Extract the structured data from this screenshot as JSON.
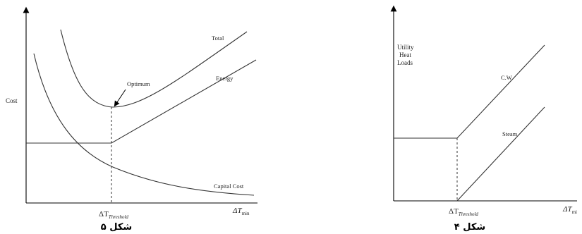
{
  "figures": [
    {
      "caption": "شکل ۵",
      "y_axis_label": "Cost",
      "x_axis_label": "ΔT",
      "x_axis_sub": "min",
      "threshold_label": "ΔT",
      "threshold_sub": "Threshold",
      "curves": {
        "total": "Total",
        "energy": "Energy",
        "capital": "Capital Cost",
        "optimum": "Optimum"
      }
    },
    {
      "caption": "شکل ۴",
      "y_axis_label_lines": [
        "Utility",
        "Heat",
        "Loads"
      ],
      "x_axis_label": "ΔT",
      "x_axis_sub": "mi",
      "threshold_label": "ΔT",
      "threshold_sub": "Threshold",
      "curves": {
        "cw": "C.W",
        "steam": "Steam"
      }
    }
  ]
}
